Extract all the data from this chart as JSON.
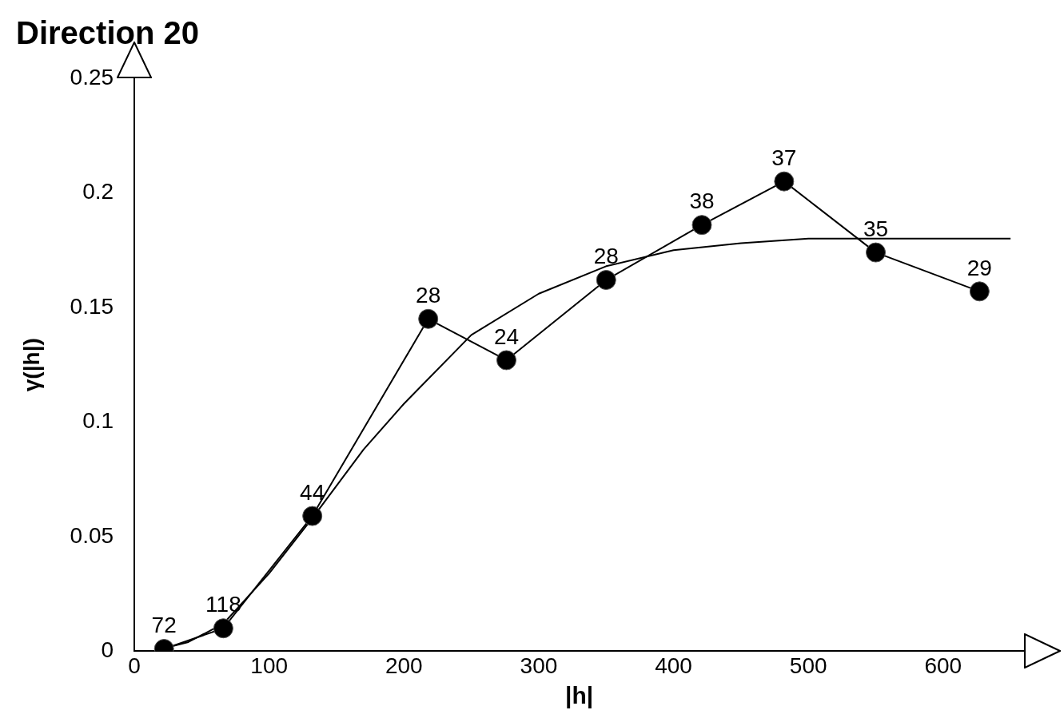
{
  "chart_data": {
    "type": "line",
    "title": "Direction 20",
    "xlabel": "|h|",
    "ylabel": "γ(|h|)",
    "xlim": [
      0,
      660
    ],
    "xticks": [
      0,
      100,
      200,
      300,
      400,
      500,
      600
    ],
    "ylim": [
      0,
      0.25
    ],
    "yticks": [
      0,
      0.05,
      0.1,
      0.15,
      0.2,
      0.25
    ],
    "grid": false,
    "legend": false,
    "series": [
      {
        "type": "line",
        "marker": "circle",
        "color": "#000000",
        "x": [
          22,
          66,
          132,
          218,
          276,
          350,
          421,
          482,
          550,
          627
        ],
        "values": [
          0.001,
          0.01,
          0.059,
          0.145,
          0.127,
          0.162,
          0.186,
          0.205,
          0.174,
          0.157
        ]
      },
      {
        "type": "line",
        "marker": "none",
        "color": "#000000",
        "x": [
          20,
          40,
          66,
          100,
          132,
          170,
          200,
          250,
          300,
          350,
          400,
          450,
          500,
          550,
          600,
          650
        ],
        "values": [
          0.001,
          0.004,
          0.012,
          0.034,
          0.058,
          0.088,
          0.108,
          0.138,
          0.156,
          0.168,
          0.175,
          0.178,
          0.18,
          0.18,
          0.18,
          0.18
        ]
      }
    ],
    "annotations": [
      {
        "text": "72",
        "x": 22,
        "y": 0.001
      },
      {
        "text": "118",
        "x": 66,
        "y": 0.01
      },
      {
        "text": "44",
        "x": 132,
        "y": 0.059
      },
      {
        "text": "28",
        "x": 218,
        "y": 0.145
      },
      {
        "text": "24",
        "x": 276,
        "y": 0.127
      },
      {
        "text": "28",
        "x": 350,
        "y": 0.162
      },
      {
        "text": "38",
        "x": 421,
        "y": 0.186
      },
      {
        "text": "37",
        "x": 482,
        "y": 0.205
      },
      {
        "text": "35",
        "x": 550,
        "y": 0.174
      },
      {
        "text": "29",
        "x": 627,
        "y": 0.157
      }
    ]
  }
}
